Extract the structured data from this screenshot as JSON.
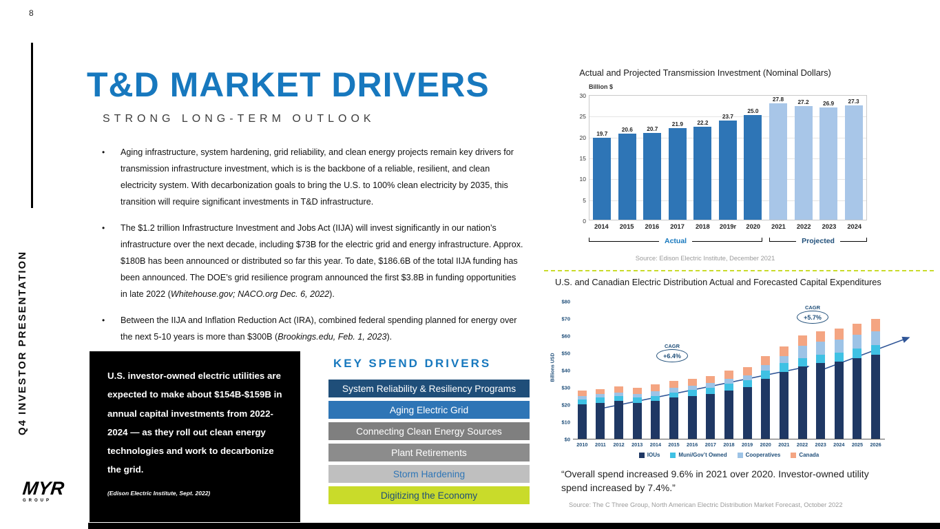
{
  "page": {
    "number": "8",
    "sidebar_text": "Q4 INVESTOR PRESENTATION",
    "logo": {
      "myr": "MYR",
      "group": "GROUP"
    }
  },
  "header": {
    "title": "T&D MARKET DRIVERS",
    "subtitle": "STRONG LONG-TERM OUTLOOK"
  },
  "bullets": [
    [
      {
        "t": "Aging infrastructure, system hardening, grid reliability, and clean energy projects remain key drivers for transmission infrastructure investment, which is is the backbone of a reliable, resilient, and clean electricity system. With decarbonization goals to bring the U.S. to 100% clean electricity by 2035, this transition will require significant investments in T&D infrastructure.",
        "i": false
      }
    ],
    [
      {
        "t": "The $1.2 trillion Infrastructure Investment and Jobs Act (IIJA) will invest significantly in our nation’s infrastructure over the next decade, including $73B for the electric grid and energy infrastructure. Approx. $180B has been announced or distributed so far this year. To date, $186.6B of the total IIJA funding has been announced. The DOE’s grid resilience program announced the first $3.8B in funding opportunities in late 2022 (",
        "i": false
      },
      {
        "t": "Whitehouse.gov; NACO.org Dec. 6, 2022",
        "i": true
      },
      {
        "t": ").",
        "i": false
      }
    ],
    [
      {
        "t": "Between the IIJA and Inflation Reduction Act (IRA), combined federal spending planned for energy over the next 5-10 years is more than $300B (",
        "i": false
      },
      {
        "t": "Brookings.edu, Feb. 1, 2023",
        "i": true
      },
      {
        "t": ").",
        "i": false
      }
    ]
  ],
  "highlight_box": {
    "text": "U.S. investor-owned electric utilities are expected to make about $154B-$159B in annual capital investments from 2022-2024 — as they roll out clean energy technologies and work to decarbonize the grid.",
    "source": "(Edison Electric Institute, Sept. 2022)"
  },
  "key_spend": {
    "heading": "KEY SPEND DRIVERS",
    "items": [
      {
        "label": "System Reliability & Resiliency Programs",
        "bg": "#1F4E79",
        "color": "#FFFFFF"
      },
      {
        "label": "Aging Electric Grid",
        "bg": "#2E75B6",
        "color": "#FFFFFF"
      },
      {
        "label": "Connecting Clean Energy Sources",
        "bg": "#7F7F7F",
        "color": "#FFFFFF"
      },
      {
        "label": "Plant Retirements",
        "bg": "#8C8C8C",
        "color": "#FFFFFF"
      },
      {
        "label": "Storm Hardening",
        "bg": "#BFBFBF",
        "color": "#2E75B6"
      },
      {
        "label": "Digitizing the Economy",
        "bg": "#C9DB2A",
        "color": "#1F4E79"
      }
    ]
  },
  "chart_data": [
    {
      "type": "bar",
      "title": "Actual and Projected Transmission Investment (Nominal Dollars)",
      "ylabel": "Billion $",
      "ylim": [
        0,
        30
      ],
      "yticks": [
        0,
        5,
        10,
        15,
        20,
        25,
        30
      ],
      "categories": [
        "2014",
        "2015",
        "2016",
        "2017",
        "2018",
        "2019r",
        "2020",
        "2021",
        "2022",
        "2023",
        "2024"
      ],
      "values": [
        19.7,
        20.6,
        20.7,
        21.9,
        22.2,
        23.7,
        25.0,
        27.8,
        27.2,
        26.9,
        27.3
      ],
      "segments": [
        {
          "label": "Actual",
          "count": 7,
          "color": "#2E75B6",
          "label_color": "#1778BE"
        },
        {
          "label": "Projected",
          "count": 4,
          "color": "#A8C6E8",
          "label_color": "#1F4E79"
        }
      ],
      "grid": true,
      "source": "Source:  Edison Electric Institute, December 2021"
    },
    {
      "type": "stacked-bar",
      "title": "U.S. and Canadian Electric Distribution Actual and Forecasted Capital Expenditures",
      "ylabel": "Billions USD",
      "ylim": [
        0,
        80
      ],
      "ytick_labels": [
        "$0",
        "$10",
        "$20",
        "$30",
        "$40",
        "$50",
        "$60",
        "$70",
        "$80"
      ],
      "categories": [
        "2010",
        "2011",
        "2012",
        "2013",
        "2014",
        "2015",
        "2016",
        "2017",
        "2018",
        "2019",
        "2020",
        "2021",
        "2022",
        "2023",
        "2024",
        "2025",
        "2026"
      ],
      "series": [
        {
          "name": "IOUs",
          "color": "#1F3864",
          "values": [
            20,
            21,
            22,
            21,
            22,
            24,
            25,
            26,
            28,
            30,
            35,
            39,
            42,
            44,
            45,
            47,
            49
          ]
        },
        {
          "name": "Muni/Gov’t Owned",
          "color": "#3FC1E4",
          "values": [
            3,
            3,
            3,
            3,
            3,
            3,
            3.5,
            3.5,
            4,
            4,
            4.5,
            5,
            5,
            5,
            5,
            5.5,
            5.5
          ]
        },
        {
          "name": "Cooperatives",
          "color": "#9DC3E6",
          "values": [
            2,
            2,
            2,
            2,
            2.5,
            2.5,
            2.5,
            3,
            3,
            3,
            3.5,
            4,
            7,
            7.5,
            7.5,
            8,
            8
          ]
        },
        {
          "name": "Canada",
          "color": "#F4A582",
          "values": [
            3,
            3,
            3.5,
            3.5,
            4,
            4,
            4,
            4,
            4.5,
            4.5,
            5,
            5.5,
            6,
            6,
            6.5,
            6.5,
            7
          ]
        }
      ],
      "forecast_start_index": 12,
      "annotations": [
        {
          "label": "CAGR",
          "value": "+6.4%"
        },
        {
          "label": "CAGR",
          "value": "+5.7%"
        }
      ],
      "legend_position": "bottom",
      "source": "Source:  The C Three Group, North American Electric Distribution Market Forecast, October 2022"
    }
  ],
  "quote": "“Overall spend increased 9.6% in 2021 over 2020. Investor-owned utility spend increased by 7.4%.”"
}
